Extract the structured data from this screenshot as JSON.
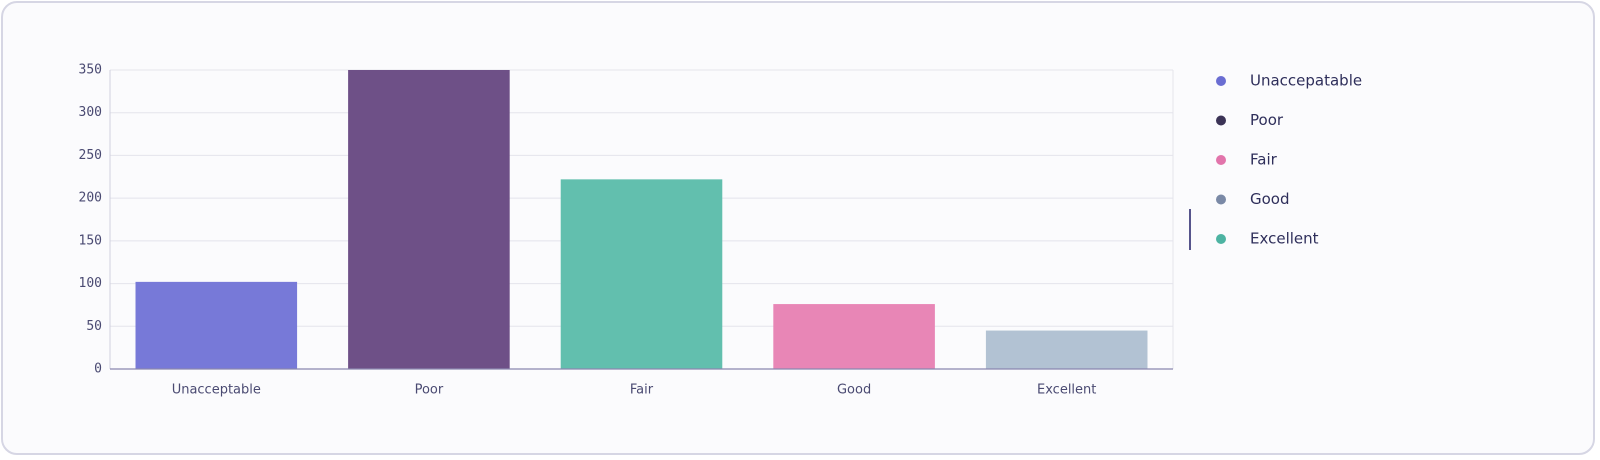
{
  "chart_data": {
    "type": "bar",
    "categories": [
      "Unacceptable",
      "Poor",
      "Fair",
      "Good",
      "Excellent"
    ],
    "values": [
      102,
      350,
      222,
      76,
      45
    ],
    "colors": [
      "#7779d8",
      "#6e5087",
      "#62bfae",
      "#e886b6",
      "#b2c2d3"
    ],
    "ylim": [
      0,
      350
    ],
    "yticks": [
      0,
      50,
      100,
      150,
      200,
      250,
      300,
      350
    ],
    "grid": true,
    "legend_items": [
      {
        "name": "Unaccepatable",
        "color": "#6a6dd2"
      },
      {
        "name": "Poor",
        "color": "#3b3356"
      },
      {
        "name": "Fair",
        "color": "#e274ab"
      },
      {
        "name": "Good",
        "color": "#7a89a6"
      },
      {
        "name": "Excellent",
        "color": "#4db3a2"
      }
    ]
  }
}
